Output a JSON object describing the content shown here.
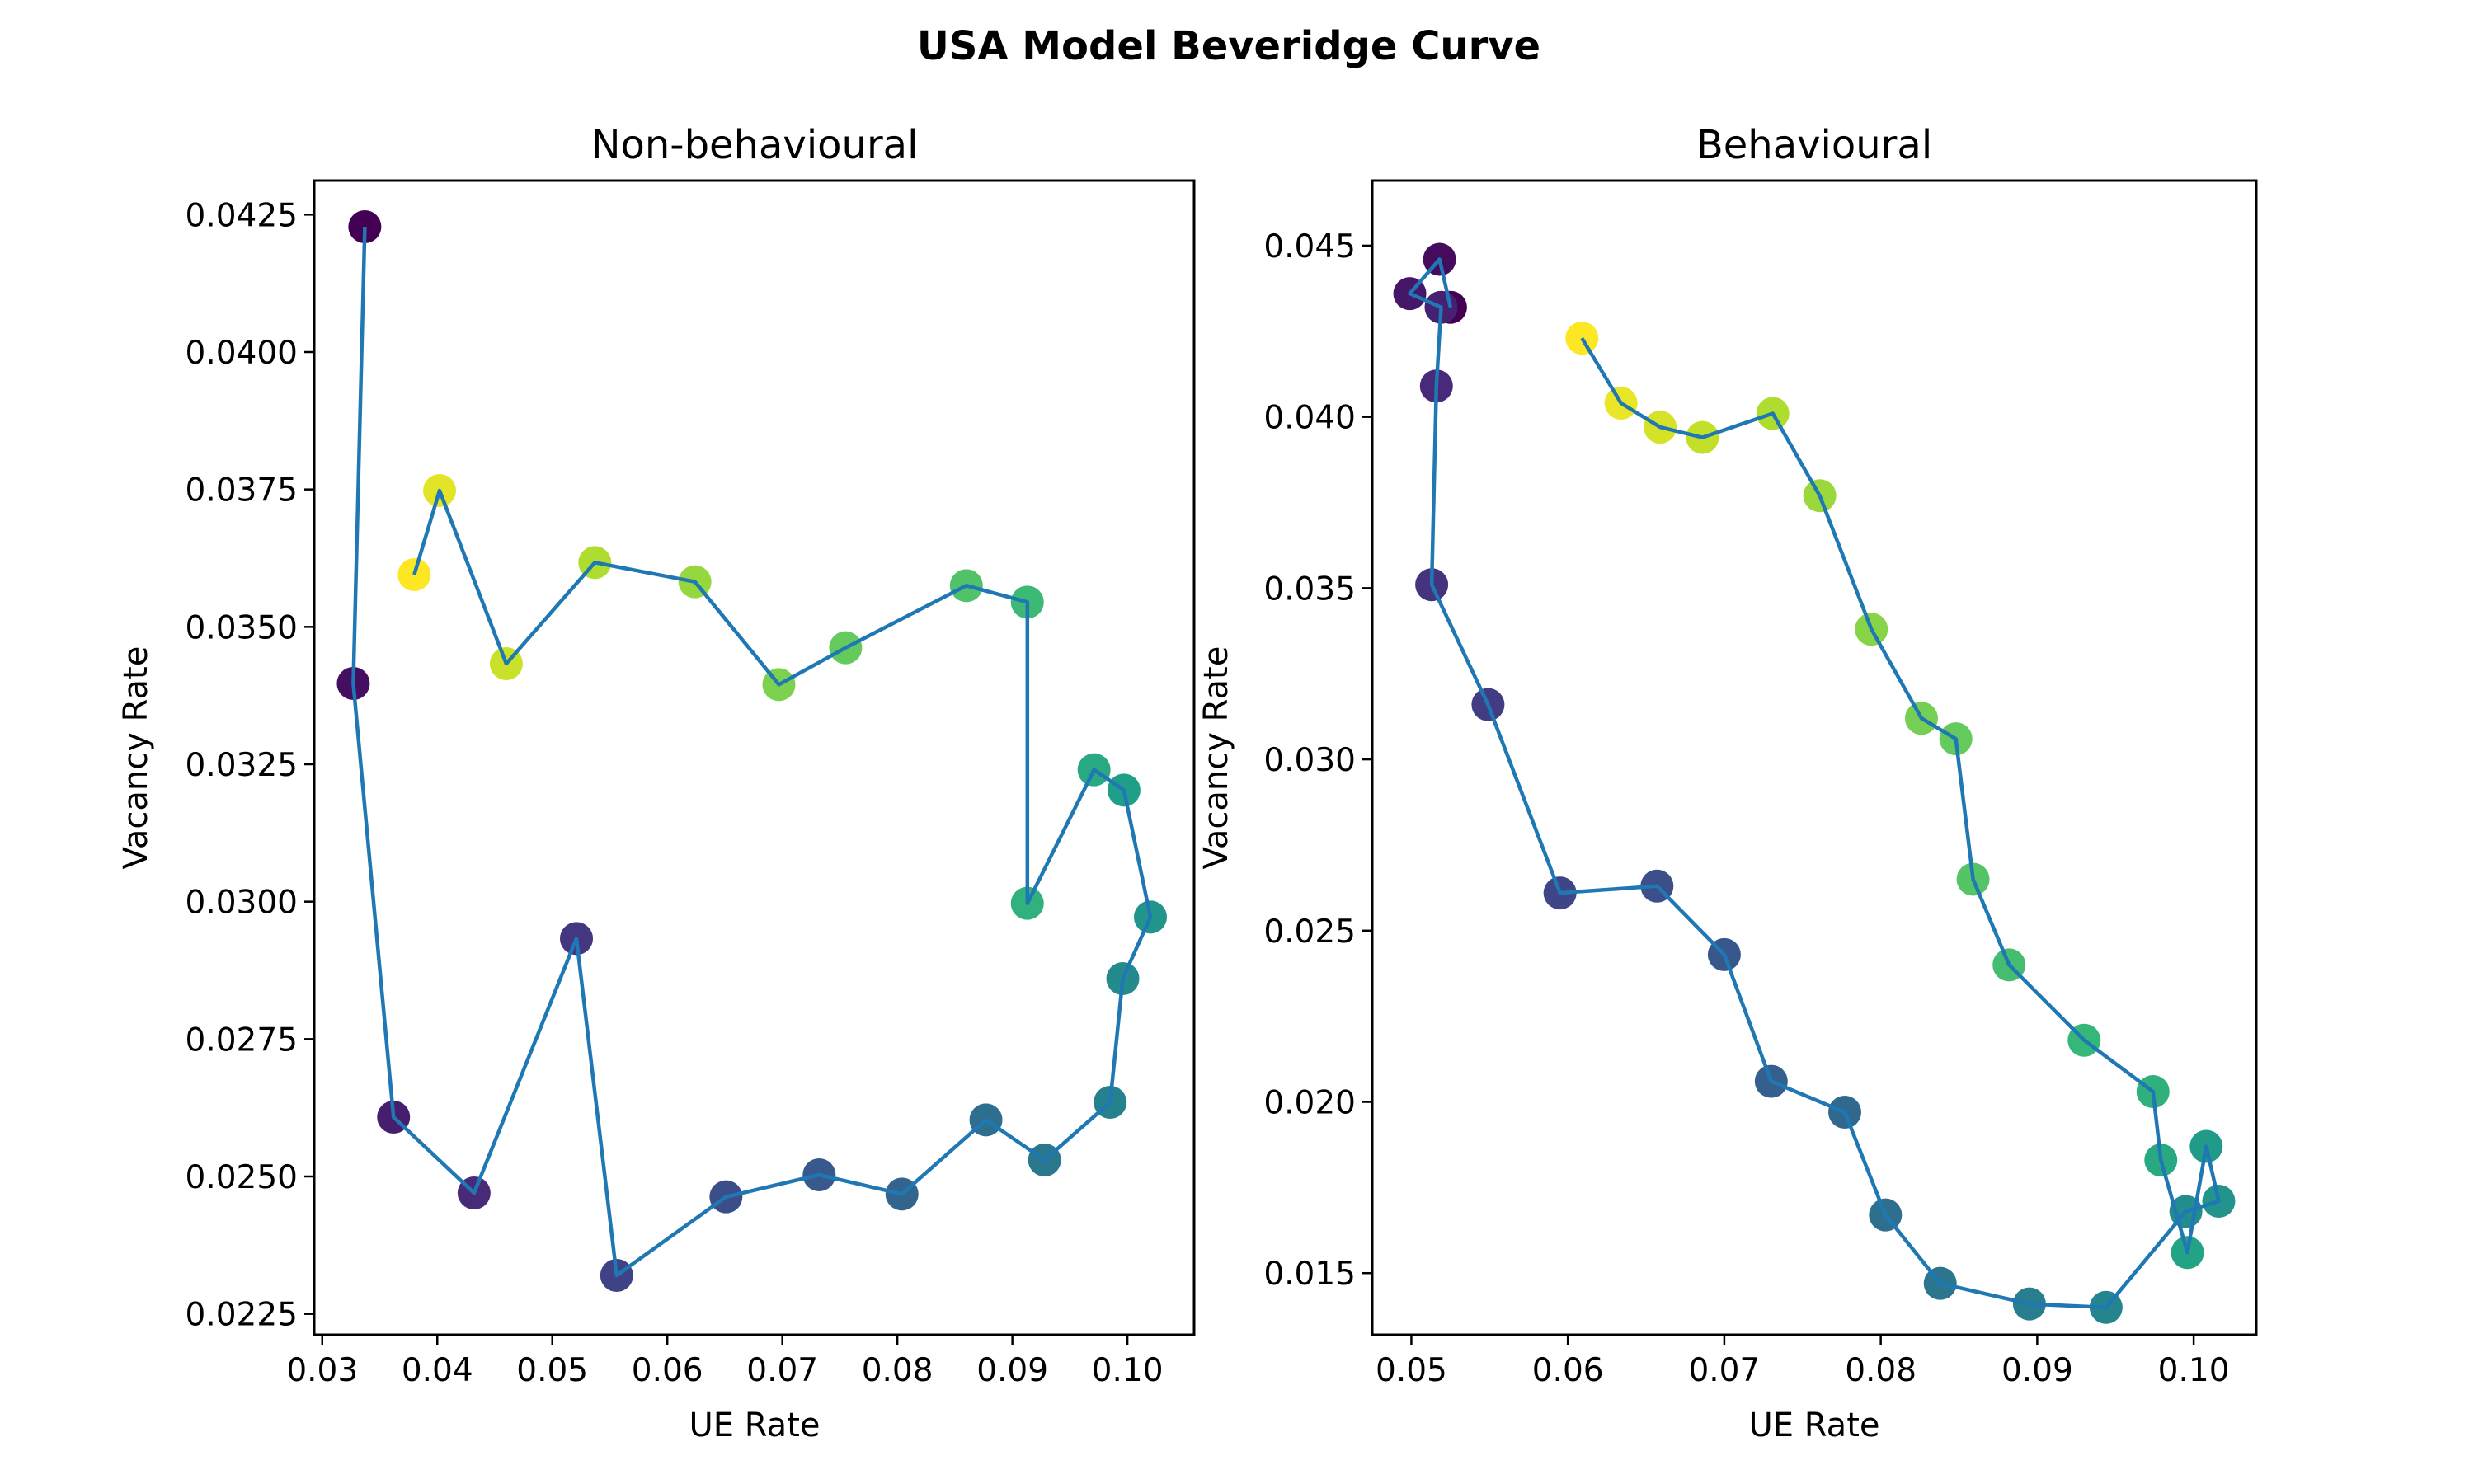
{
  "figure_title": "USA Model Beveridge Curve",
  "colors": {
    "line": "#1f77b4",
    "colormap": "viridis"
  },
  "chart_data": [
    {
      "type": "scatter",
      "title": "Non-behavioural",
      "xlabel": "UE Rate",
      "ylabel": "Vacancy Rate",
      "xlim": [
        0.0293,
        0.1058
      ],
      "ylim": [
        0.02212,
        0.04312
      ],
      "xticks": [
        "0.03",
        "0.04",
        "0.05",
        "0.06",
        "0.07",
        "0.08",
        "0.09",
        "0.10"
      ],
      "xtick_values": [
        0.03,
        0.04,
        0.05,
        0.06,
        0.07,
        0.08,
        0.09,
        0.1
      ],
      "yticks": [
        "0.0225",
        "0.0250",
        "0.0275",
        "0.0300",
        "0.0325",
        "0.0350",
        "0.0375",
        "0.0400",
        "0.0425"
      ],
      "ytick_values": [
        0.0225,
        0.025,
        0.0275,
        0.03,
        0.0325,
        0.035,
        0.0375,
        0.04,
        0.0425
      ],
      "grid": false,
      "connected": true,
      "color_by": "order",
      "points": [
        {
          "x": 0.0337,
          "y": 0.04228
        },
        {
          "x": 0.0327,
          "y": 0.03397
        },
        {
          "x": 0.0362,
          "y": 0.02608
        },
        {
          "x": 0.0432,
          "y": 0.0247
        },
        {
          "x": 0.0521,
          "y": 0.02933
        },
        {
          "x": 0.0556,
          "y": 0.0232
        },
        {
          "x": 0.0651,
          "y": 0.02463
        },
        {
          "x": 0.0732,
          "y": 0.02503
        },
        {
          "x": 0.0804,
          "y": 0.02468
        },
        {
          "x": 0.0877,
          "y": 0.02603
        },
        {
          "x": 0.0928,
          "y": 0.0253
        },
        {
          "x": 0.0985,
          "y": 0.02635
        },
        {
          "x": 0.0996,
          "y": 0.0286
        },
        {
          "x": 0.102,
          "y": 0.02972
        },
        {
          "x": 0.0997,
          "y": 0.03203
        },
        {
          "x": 0.0971,
          "y": 0.0324
        },
        {
          "x": 0.0913,
          "y": 0.02997
        },
        {
          "x": 0.0913,
          "y": 0.03545
        },
        {
          "x": 0.086,
          "y": 0.03575
        },
        {
          "x": 0.0755,
          "y": 0.03462
        },
        {
          "x": 0.0697,
          "y": 0.03395
        },
        {
          "x": 0.0624,
          "y": 0.03582
        },
        {
          "x": 0.0537,
          "y": 0.03617
        },
        {
          "x": 0.046,
          "y": 0.03433
        },
        {
          "x": 0.0402,
          "y": 0.03748
        },
        {
          "x": 0.038,
          "y": 0.03595
        }
      ]
    },
    {
      "type": "scatter",
      "title": "Behavioural",
      "xlabel": "UE Rate",
      "ylabel": "Vacancy Rate",
      "xlim": [
        0.0475,
        0.104
      ],
      "ylim": [
        0.0132,
        0.0469
      ],
      "xticks": [
        "0.05",
        "0.06",
        "0.07",
        "0.08",
        "0.09",
        "0.10"
      ],
      "xtick_values": [
        0.05,
        0.06,
        0.07,
        0.08,
        0.09,
        0.1
      ],
      "yticks": [
        "0.015",
        "0.020",
        "0.025",
        "0.030",
        "0.035",
        "0.040",
        "0.045"
      ],
      "ytick_values": [
        0.015,
        0.02,
        0.025,
        0.03,
        0.035,
        0.04,
        0.045
      ],
      "grid": false,
      "connected": true,
      "color_by": "order",
      "points": [
        {
          "x": 0.0525,
          "y": 0.0432
        },
        {
          "x": 0.0518,
          "y": 0.0446
        },
        {
          "x": 0.0499,
          "y": 0.0436
        },
        {
          "x": 0.0519,
          "y": 0.0432
        },
        {
          "x": 0.0516,
          "y": 0.0409
        },
        {
          "x": 0.0513,
          "y": 0.0351
        },
        {
          "x": 0.0549,
          "y": 0.0316
        },
        {
          "x": 0.0595,
          "y": 0.0261
        },
        {
          "x": 0.0657,
          "y": 0.0263
        },
        {
          "x": 0.07,
          "y": 0.0243
        },
        {
          "x": 0.073,
          "y": 0.0206
        },
        {
          "x": 0.0777,
          "y": 0.0197
        },
        {
          "x": 0.0803,
          "y": 0.0167
        },
        {
          "x": 0.0838,
          "y": 0.0147
        },
        {
          "x": 0.0895,
          "y": 0.0141
        },
        {
          "x": 0.0944,
          "y": 0.014
        },
        {
          "x": 0.0995,
          "y": 0.0168
        },
        {
          "x": 0.1016,
          "y": 0.0171
        },
        {
          "x": 0.1008,
          "y": 0.0187
        },
        {
          "x": 0.0996,
          "y": 0.0156
        },
        {
          "x": 0.0979,
          "y": 0.0183
        },
        {
          "x": 0.0974,
          "y": 0.0203
        },
        {
          "x": 0.093,
          "y": 0.0218
        },
        {
          "x": 0.0882,
          "y": 0.024
        },
        {
          "x": 0.0859,
          "y": 0.0265
        },
        {
          "x": 0.0848,
          "y": 0.0306
        },
        {
          "x": 0.0826,
          "y": 0.0312
        },
        {
          "x": 0.0794,
          "y": 0.0338
        },
        {
          "x": 0.0761,
          "y": 0.0377
        },
        {
          "x": 0.0731,
          "y": 0.0401
        },
        {
          "x": 0.0686,
          "y": 0.0394
        },
        {
          "x": 0.0659,
          "y": 0.0397
        },
        {
          "x": 0.0634,
          "y": 0.0404
        },
        {
          "x": 0.0609,
          "y": 0.0423
        }
      ]
    }
  ]
}
